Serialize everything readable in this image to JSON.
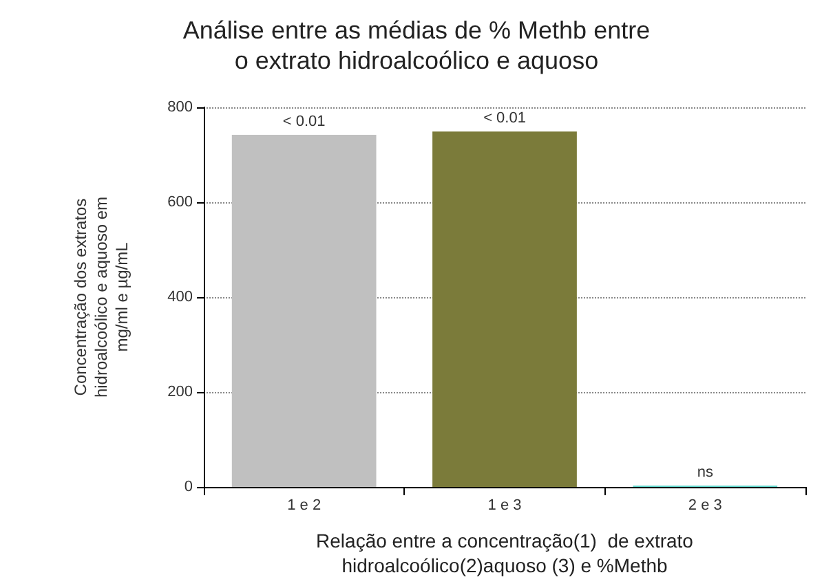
{
  "chart_data": {
    "type": "bar",
    "title": "Análise entre as médias de % Methb entre\no extrato hidroalcoólico e aquoso",
    "xlabel": "Relação entre a concentração(1)  de extrato\nhidroalcoólico(2)aquoso (3) e %Methb",
    "ylabel": "Concentração dos extratos\nhidroalcoólico e aquoso em\nmg/ml e µg/mL",
    "categories": [
      "1 e 2",
      "1 e 3",
      "2 e 3"
    ],
    "values": [
      742,
      749,
      3
    ],
    "colors": [
      "#c0c0c0",
      "#7b7b3a",
      "#5fd3c8"
    ],
    "ylim": [
      0,
      800
    ],
    "yticks": [
      0,
      200,
      400,
      600,
      800
    ],
    "grid": "y",
    "annotations": [
      {
        "text": "< 0.01",
        "x": "1 e 2",
        "y": 742
      },
      {
        "text": "< 0.01",
        "x": "1 e 3",
        "y": 749
      },
      {
        "text": "ns",
        "x": "2 e 3",
        "y": 3
      }
    ]
  }
}
